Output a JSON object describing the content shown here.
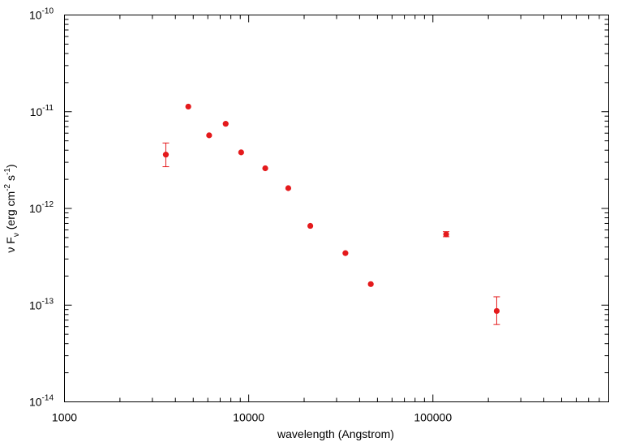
{
  "chart_data": {
    "type": "scatter",
    "title": "",
    "xlabel": "wavelength (Angstrom)",
    "ylabel_parts": {
      "nu": "ν",
      "F": "F",
      "sub": "ν",
      "open": "(erg cm",
      "exp1": "-2",
      "mid": "s",
      "exp2": "-1",
      "close": ")"
    },
    "xscale": "log",
    "yscale": "log",
    "xlim": [
      1000,
      900000
    ],
    "ylim": [
      1e-14,
      1e-10
    ],
    "grid": false,
    "legend": "none",
    "marker_color": "#e41a1c",
    "x_ticks": [
      {
        "value": 1000,
        "label": "1000"
      },
      {
        "value": 10000,
        "label": "10000"
      },
      {
        "value": 100000,
        "label": "100000"
      }
    ],
    "y_ticks": [
      {
        "value": 1e-14,
        "base": "10",
        "exp": "-14"
      },
      {
        "value": 1e-13,
        "base": "10",
        "exp": "-13"
      },
      {
        "value": 1e-12,
        "base": "10",
        "exp": "-12"
      },
      {
        "value": 1e-11,
        "base": "10",
        "exp": "-11"
      },
      {
        "value": 1e-10,
        "base": "10",
        "exp": "-10"
      }
    ],
    "points": [
      {
        "x": 3550,
        "y": 3.6e-12,
        "ylo": 2.7e-12,
        "yhi": 4.75e-12
      },
      {
        "x": 4700,
        "y": 1.13e-11
      },
      {
        "x": 6100,
        "y": 5.7e-12
      },
      {
        "x": 7500,
        "y": 7.5e-12
      },
      {
        "x": 9100,
        "y": 3.8e-12
      },
      {
        "x": 12300,
        "y": 2.6e-12
      },
      {
        "x": 16400,
        "y": 1.62e-12
      },
      {
        "x": 21600,
        "y": 6.6e-13
      },
      {
        "x": 33500,
        "y": 3.45e-13
      },
      {
        "x": 46000,
        "y": 1.65e-13
      },
      {
        "x": 118000,
        "y": 5.4e-13,
        "ylo": 5.1e-13,
        "yhi": 5.75e-13
      },
      {
        "x": 222000,
        "y": 8.7e-14,
        "ylo": 6.3e-14,
        "yhi": 1.22e-13
      }
    ]
  }
}
